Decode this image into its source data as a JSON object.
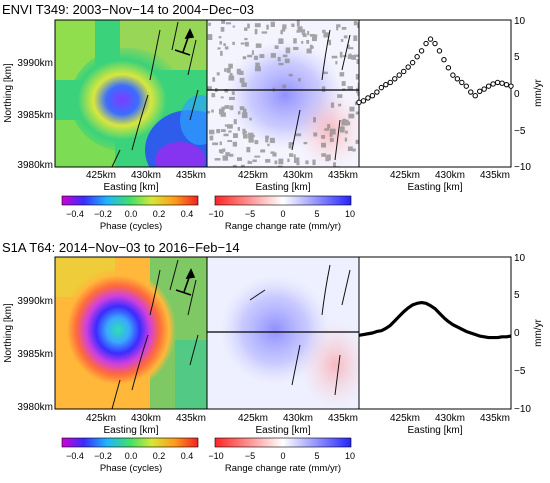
{
  "panels": [
    {
      "title": "ENVI T349: 2003−Nov−14 to 2004−Dec−03",
      "northing_label": "Northing [km]",
      "y_ticks": [
        "3990km",
        "3985km",
        "3980km"
      ],
      "x_ticks": [
        "425km",
        "430km",
        "435km"
      ],
      "x_label": "Easting [km]",
      "right_ticks": [
        "10",
        "5",
        "0",
        "−5",
        "−10"
      ],
      "right_unit": "mm/yr",
      "phase_bar": {
        "ticks": [
          "−0.4",
          "−0.2",
          "0.0",
          "0.2",
          "0.4"
        ],
        "label": "Phase (cycles)"
      },
      "rate_bar": {
        "ticks": [
          "−10",
          "−5",
          "0",
          "5",
          "10"
        ],
        "label": "Range change rate (mm/yr)"
      }
    },
    {
      "title": "S1A T64: 2014−Nov−03 to 2016−Feb−14",
      "northing_label": "Northing [km]",
      "y_ticks": [
        "3990km",
        "3985km",
        "3980km"
      ],
      "x_ticks": [
        "425km",
        "430km",
        "435km"
      ],
      "x_label": "Easting [km]",
      "right_ticks": [
        "10",
        "5",
        "0",
        "−5",
        "−10"
      ],
      "right_unit": "mm/yr",
      "phase_bar": {
        "ticks": [
          "−0.4",
          "−0.2",
          "0.0",
          "0.2",
          "0.4"
        ],
        "label": "Phase (cycles)"
      },
      "rate_bar": {
        "ticks": [
          "−10",
          "−5",
          "0",
          "5",
          "10"
        ],
        "label": "Range change rate (mm/yr)"
      }
    }
  ],
  "chart_data": [
    {
      "type": "scatter",
      "title": "",
      "xlabel": "Easting [km]",
      "ylabel": "mm/yr",
      "xlim": [
        421,
        438
      ],
      "ylim": [
        -10,
        10
      ],
      "x": [
        421.0,
        421.5,
        422.0,
        422.5,
        423.0,
        423.5,
        424.0,
        424.5,
        425.0,
        425.5,
        426.0,
        426.5,
        427.0,
        427.5,
        428.0,
        428.5,
        429.0,
        429.5,
        430.0,
        430.5,
        431.0,
        431.5,
        432.0,
        432.5,
        433.0,
        433.5,
        434.0,
        434.5,
        435.0,
        435.5,
        436.0,
        436.5,
        437.0,
        437.5,
        438.0
      ],
      "values": [
        -1.2,
        -1.0,
        -0.6,
        -0.3,
        0.2,
        0.8,
        1.2,
        1.5,
        2.0,
        2.5,
        3.0,
        3.6,
        4.2,
        5.0,
        5.8,
        6.8,
        7.4,
        6.8,
        5.8,
        4.6,
        3.5,
        2.5,
        2.0,
        1.5,
        1.0,
        0.2,
        -0.3,
        0.3,
        0.6,
        1.0,
        1.3,
        1.5,
        1.4,
        1.2,
        1.0
      ]
    },
    {
      "type": "line",
      "title": "",
      "xlabel": "Easting [km]",
      "ylabel": "mm/yr",
      "xlim": [
        421,
        438
      ],
      "ylim": [
        -10,
        10
      ],
      "x": [
        421.0,
        421.5,
        422.0,
        422.5,
        423.0,
        423.5,
        424.0,
        424.5,
        425.0,
        425.5,
        426.0,
        426.5,
        427.0,
        427.5,
        428.0,
        428.5,
        429.0,
        429.5,
        430.0,
        430.5,
        431.0,
        431.5,
        432.0,
        432.5,
        433.0,
        433.5,
        434.0,
        434.5,
        435.0,
        435.5,
        436.0,
        436.5,
        437.0,
        437.5,
        438.0
      ],
      "values": [
        -0.3,
        -0.2,
        -0.1,
        0.0,
        0.2,
        0.3,
        0.6,
        1.0,
        1.6,
        2.2,
        2.8,
        3.3,
        3.7,
        3.9,
        4.0,
        3.9,
        3.6,
        3.2,
        2.6,
        2.0,
        1.5,
        1.1,
        0.8,
        0.5,
        0.2,
        0.0,
        -0.2,
        -0.4,
        -0.5,
        -0.6,
        -0.6,
        -0.6,
        -0.5,
        -0.5,
        -0.4
      ]
    }
  ]
}
